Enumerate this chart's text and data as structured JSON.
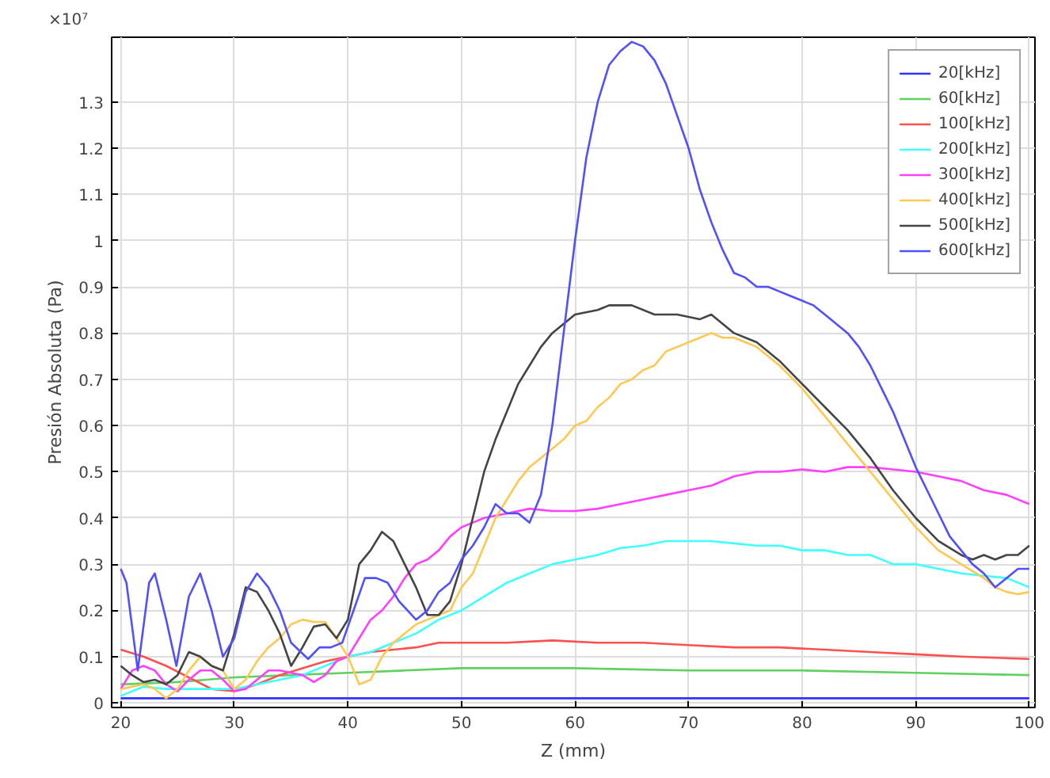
{
  "chart_data": {
    "type": "line",
    "xlabel": "Z (mm)",
    "ylabel": "Presión Absoluta (Pa)",
    "annotations": [
      "×10⁷"
    ],
    "xlim": [
      19.2,
      100.5
    ],
    "ylim": [
      -0.01,
      1.44
    ],
    "xticks": [
      20,
      30,
      40,
      50,
      60,
      70,
      80,
      90,
      100
    ],
    "yticks": [
      0,
      0.1,
      0.2,
      0.3,
      0.4,
      0.5,
      0.6,
      0.7,
      0.8,
      0.9,
      1,
      1.1,
      1.2,
      1.3
    ],
    "grid": true,
    "legend": "top right",
    "marker": "none",
    "line_style": "solid",
    "series": [
      {
        "name": "20[kHz]",
        "color": "#3030ff",
        "x": [
          20,
          40,
          60,
          80,
          100
        ],
        "values": [
          0.01,
          0.01,
          0.01,
          0.01,
          0.01
        ]
      },
      {
        "name": "60[kHz]",
        "color": "#60d060",
        "x": [
          20,
          25,
          30,
          35,
          40,
          45,
          50,
          60,
          70,
          80,
          90,
          100
        ],
        "values": [
          0.04,
          0.045,
          0.055,
          0.06,
          0.065,
          0.07,
          0.075,
          0.075,
          0.07,
          0.07,
          0.065,
          0.06
        ]
      },
      {
        "name": "100[kHz]",
        "color": "#ff5050",
        "x": [
          20,
          22,
          24,
          26,
          28,
          30,
          32,
          34,
          36,
          38,
          40,
          42,
          44,
          46,
          48,
          50,
          54,
          58,
          62,
          66,
          70,
          74,
          78,
          82,
          86,
          90,
          94,
          100
        ],
        "values": [
          0.115,
          0.1,
          0.08,
          0.055,
          0.03,
          0.025,
          0.04,
          0.06,
          0.075,
          0.09,
          0.1,
          0.11,
          0.115,
          0.12,
          0.13,
          0.13,
          0.13,
          0.135,
          0.13,
          0.13,
          0.125,
          0.12,
          0.12,
          0.115,
          0.11,
          0.105,
          0.1,
          0.095
        ]
      },
      {
        "name": "200[kHz]",
        "color": "#40ffff",
        "x": [
          20,
          22,
          24,
          26,
          28,
          30,
          32,
          34,
          36,
          38,
          40,
          42,
          44,
          46,
          48,
          50,
          52,
          54,
          56,
          58,
          60,
          62,
          64,
          66,
          68,
          70,
          72,
          74,
          76,
          78,
          80,
          82,
          84,
          86,
          88,
          90,
          92,
          94,
          96,
          98,
          100
        ],
        "values": [
          0.015,
          0.035,
          0.03,
          0.03,
          0.03,
          0.03,
          0.04,
          0.05,
          0.06,
          0.08,
          0.1,
          0.11,
          0.13,
          0.15,
          0.18,
          0.2,
          0.23,
          0.26,
          0.28,
          0.3,
          0.31,
          0.32,
          0.335,
          0.34,
          0.35,
          0.35,
          0.35,
          0.345,
          0.34,
          0.34,
          0.33,
          0.33,
          0.32,
          0.32,
          0.3,
          0.3,
          0.29,
          0.28,
          0.275,
          0.27,
          0.25
        ]
      },
      {
        "name": "300[kHz]",
        "color": "#ff40ff",
        "x": [
          20,
          21,
          22,
          23,
          24,
          25,
          26,
          27,
          28,
          29,
          30,
          31,
          32,
          33,
          34,
          35,
          36,
          37,
          38,
          39,
          40,
          41,
          42,
          43,
          44,
          45,
          46,
          47,
          48,
          49,
          50,
          51,
          52,
          54,
          56,
          58,
          60,
          62,
          64,
          66,
          68,
          70,
          72,
          74,
          76,
          78,
          80,
          82,
          84,
          86,
          88,
          90,
          92,
          94,
          96,
          98,
          100
        ],
        "values": [
          0.03,
          0.07,
          0.08,
          0.07,
          0.04,
          0.025,
          0.05,
          0.07,
          0.07,
          0.05,
          0.025,
          0.03,
          0.05,
          0.07,
          0.07,
          0.065,
          0.06,
          0.045,
          0.06,
          0.09,
          0.1,
          0.14,
          0.18,
          0.2,
          0.23,
          0.27,
          0.3,
          0.31,
          0.33,
          0.36,
          0.38,
          0.39,
          0.4,
          0.41,
          0.42,
          0.415,
          0.415,
          0.42,
          0.43,
          0.44,
          0.45,
          0.46,
          0.47,
          0.49,
          0.5,
          0.5,
          0.505,
          0.5,
          0.51,
          0.51,
          0.505,
          0.5,
          0.49,
          0.48,
          0.46,
          0.45,
          0.43
        ]
      },
      {
        "name": "400[kHz]",
        "color": "#ffc850",
        "x": [
          20,
          22,
          23,
          24,
          25,
          26,
          27,
          28,
          29,
          30,
          31,
          32,
          33,
          34,
          35,
          36,
          37,
          38,
          39,
          40,
          41,
          42,
          43,
          44,
          45,
          46,
          47,
          48,
          49,
          50,
          51,
          52,
          53,
          54,
          55,
          56,
          57,
          58,
          59,
          60,
          61,
          62,
          63,
          64,
          65,
          66,
          67,
          68,
          69,
          70,
          71,
          72,
          73,
          74,
          75,
          76,
          78,
          80,
          82,
          84,
          86,
          88,
          90,
          92,
          94,
          96,
          97,
          98,
          99,
          100
        ],
        "values": [
          0.03,
          0.04,
          0.03,
          0.01,
          0.03,
          0.07,
          0.1,
          0.08,
          0.07,
          0.03,
          0.05,
          0.09,
          0.12,
          0.14,
          0.17,
          0.18,
          0.175,
          0.175,
          0.14,
          0.1,
          0.04,
          0.05,
          0.1,
          0.13,
          0.15,
          0.17,
          0.18,
          0.19,
          0.2,
          0.25,
          0.28,
          0.34,
          0.4,
          0.44,
          0.48,
          0.51,
          0.53,
          0.55,
          0.57,
          0.6,
          0.61,
          0.64,
          0.66,
          0.69,
          0.7,
          0.72,
          0.73,
          0.76,
          0.77,
          0.78,
          0.79,
          0.8,
          0.79,
          0.79,
          0.78,
          0.77,
          0.73,
          0.68,
          0.62,
          0.56,
          0.5,
          0.44,
          0.38,
          0.33,
          0.3,
          0.27,
          0.25,
          0.24,
          0.235,
          0.24
        ]
      },
      {
        "name": "500[kHz]",
        "color": "#444444",
        "x": [
          20,
          21,
          22,
          23,
          24,
          25,
          26,
          27,
          28,
          29,
          30,
          31,
          32,
          33,
          34,
          35,
          36,
          37,
          38,
          39,
          40,
          41,
          42,
          43,
          44,
          45,
          46,
          47,
          48,
          49,
          50,
          51,
          52,
          53,
          54,
          55,
          56,
          57,
          58,
          59,
          60,
          62,
          63,
          65,
          67,
          69,
          71,
          72,
          74,
          76,
          78,
          80,
          82,
          84,
          86,
          88,
          90,
          92,
          94,
          95,
          96,
          97,
          98,
          99,
          100
        ],
        "values": [
          0.08,
          0.06,
          0.045,
          0.05,
          0.04,
          0.06,
          0.11,
          0.1,
          0.08,
          0.07,
          0.15,
          0.25,
          0.24,
          0.2,
          0.15,
          0.08,
          0.12,
          0.165,
          0.17,
          0.14,
          0.18,
          0.3,
          0.33,
          0.37,
          0.35,
          0.3,
          0.25,
          0.19,
          0.19,
          0.22,
          0.3,
          0.4,
          0.5,
          0.57,
          0.63,
          0.69,
          0.73,
          0.77,
          0.8,
          0.82,
          0.84,
          0.85,
          0.86,
          0.86,
          0.84,
          0.84,
          0.83,
          0.84,
          0.8,
          0.78,
          0.74,
          0.69,
          0.64,
          0.59,
          0.53,
          0.46,
          0.4,
          0.35,
          0.32,
          0.31,
          0.32,
          0.31,
          0.32,
          0.32,
          0.34
        ]
      },
      {
        "name": "600[kHz]",
        "color": "#5050ff",
        "x": [
          20,
          20.5,
          21.5,
          22.5,
          23,
          24,
          24.9,
          26,
          27,
          28,
          29,
          30,
          31,
          32,
          33,
          34,
          35,
          36.5,
          37.5,
          38.5,
          39.5,
          40.5,
          41.5,
          42.5,
          43.5,
          44.5,
          46,
          47,
          48,
          49,
          50,
          51,
          52,
          53,
          54,
          55,
          56,
          57,
          58,
          59,
          60,
          61,
          62,
          63,
          64,
          65,
          66,
          67,
          68,
          69,
          70,
          71,
          72,
          73,
          74,
          75,
          76,
          77,
          78,
          79,
          80,
          81,
          82,
          83,
          84,
          85,
          86,
          87,
          88,
          89,
          90,
          91,
          92,
          93,
          94,
          95,
          96,
          97,
          98,
          99,
          100
        ],
        "values": [
          0.29,
          0.26,
          0.07,
          0.26,
          0.28,
          0.18,
          0.08,
          0.23,
          0.28,
          0.2,
          0.1,
          0.14,
          0.24,
          0.28,
          0.25,
          0.2,
          0.13,
          0.095,
          0.12,
          0.12,
          0.13,
          0.2,
          0.27,
          0.27,
          0.26,
          0.22,
          0.18,
          0.2,
          0.24,
          0.26,
          0.31,
          0.34,
          0.38,
          0.43,
          0.41,
          0.41,
          0.39,
          0.45,
          0.6,
          0.8,
          1.0,
          1.18,
          1.3,
          1.38,
          1.41,
          1.43,
          1.42,
          1.39,
          1.34,
          1.27,
          1.2,
          1.11,
          1.04,
          0.98,
          0.93,
          0.92,
          0.9,
          0.9,
          0.89,
          0.88,
          0.87,
          0.86,
          0.84,
          0.82,
          0.8,
          0.77,
          0.73,
          0.68,
          0.63,
          0.57,
          0.51,
          0.46,
          0.41,
          0.36,
          0.33,
          0.3,
          0.28,
          0.25,
          0.27,
          0.29,
          0.29
        ]
      }
    ]
  }
}
